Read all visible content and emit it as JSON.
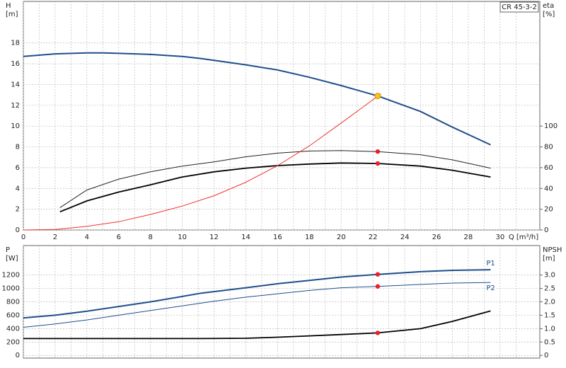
{
  "chart_data": [
    {
      "type": "line",
      "title": "CR 45-3-2",
      "y_label": [
        "H",
        "[m]"
      ],
      "y2_label": [
        "eta",
        "[%]"
      ],
      "x_label": "Q [m³/h]",
      "xlim": [
        0,
        32.5
      ],
      "xticks": [
        0,
        2,
        4,
        6,
        8,
        10,
        12,
        14,
        16,
        18,
        20,
        22,
        24,
        26,
        28,
        30
      ],
      "ylim": [
        0,
        22
      ],
      "yticks": [
        0,
        2,
        4,
        6,
        8,
        10,
        12,
        14,
        16,
        18
      ],
      "y2lim": [
        0,
        220
      ],
      "y2ticks": [
        0,
        20,
        40,
        60,
        80,
        100
      ],
      "grid": true,
      "series": [
        {
          "color": "#1f4e8c",
          "width": 2,
          "x": [
            0,
            2,
            4,
            5,
            6,
            8,
            10,
            11.2,
            14,
            16,
            18,
            20,
            22.3,
            25,
            27,
            29.4
          ],
          "values": [
            16.7,
            16.95,
            17.05,
            17.05,
            17.0,
            16.9,
            16.7,
            16.5,
            15.9,
            15.4,
            14.7,
            13.9,
            12.9,
            11.4,
            9.9,
            8.2
          ]
        },
        {
          "color": "#222222",
          "width": 1,
          "axis": "y2",
          "x": [
            2.3,
            4,
            6,
            8,
            10,
            12,
            14,
            16,
            18,
            20,
            22.3,
            25,
            27,
            29.4
          ],
          "values": [
            21.5,
            38.5,
            49,
            56,
            61.5,
            65.5,
            70.5,
            74,
            76,
            76.5,
            75.5,
            72.5,
            67.5,
            59.5
          ]
        },
        {
          "color": "#000000",
          "width": 1.8,
          "axis": "y2",
          "x": [
            2.3,
            4,
            6,
            8,
            10,
            12,
            14,
            16,
            18,
            20,
            22.3,
            25,
            27,
            29.4
          ],
          "values": [
            17.5,
            28,
            36.5,
            43.5,
            51,
            56,
            59.5,
            62,
            63.5,
            64.5,
            64,
            61.5,
            57.5,
            51
          ]
        },
        {
          "color": "#f0322d",
          "width": 1,
          "x": [
            0,
            2,
            4,
            6,
            8,
            10,
            12,
            14,
            16,
            18,
            20,
            22.5
          ],
          "values": [
            0,
            0.05,
            0.35,
            0.8,
            1.5,
            2.3,
            3.3,
            4.6,
            6.2,
            8.1,
            10.3,
            13.1
          ]
        }
      ],
      "markers": [
        {
          "x": 22.3,
          "value": 12.9,
          "color": "#f5c518"
        },
        {
          "x": 22.3,
          "value": 75.5,
          "axis": "y2",
          "color": "#e8202a"
        },
        {
          "x": 22.3,
          "value": 64,
          "axis": "y2",
          "color": "#e8202a"
        }
      ]
    },
    {
      "type": "line",
      "y_label": [
        "P",
        "[W]"
      ],
      "y2_label": [
        "NPSH",
        "[m]"
      ],
      "xlim": [
        0,
        32.5
      ],
      "xticks": [
        0,
        2,
        4,
        6,
        8,
        10,
        12,
        14,
        16,
        18,
        20,
        22,
        24,
        26,
        28,
        30
      ],
      "ylim": [
        -40,
        1640
      ],
      "yticks": [
        0,
        200,
        400,
        600,
        800,
        1000,
        1200
      ],
      "y2lim": [
        -0.1,
        4.1
      ],
      "y2ticks": [
        0,
        0.5,
        {
          "value": 1,
          "label": "1.0"
        },
        1.5,
        {
          "value": 2,
          "label": "2.0"
        },
        2.5,
        {
          "value": 3,
          "label": "3.0"
        }
      ],
      "grid": true,
      "series": [
        {
          "name": "P1",
          "color": "#1f4e8c",
          "width": 2,
          "x": [
            0,
            2,
            4,
            6,
            8,
            10,
            11.2,
            14,
            16,
            18,
            20,
            22.3,
            25,
            27,
            29.4
          ],
          "values": [
            560,
            600,
            660,
            730,
            800,
            880,
            930,
            1010,
            1070,
            1120,
            1170,
            1210,
            1250,
            1270,
            1280
          ]
        },
        {
          "name": "P2",
          "color": "#1f4e8c",
          "width": 1,
          "x": [
            0,
            2,
            4,
            6,
            8,
            10,
            12,
            14,
            16,
            18,
            20,
            22.3,
            25,
            27,
            29.4
          ],
          "values": [
            420,
            470,
            530,
            600,
            670,
            740,
            810,
            870,
            920,
            970,
            1010,
            1030,
            1060,
            1080,
            1090
          ]
        },
        {
          "color": "#000000",
          "width": 1.8,
          "axis": "y2",
          "x": [
            0,
            4,
            8,
            11.2,
            14,
            16,
            18,
            20,
            22.3,
            25,
            27,
            29.4
          ],
          "values": [
            0.63,
            0.63,
            0.63,
            0.63,
            0.64,
            0.68,
            0.73,
            0.78,
            0.84,
            1.0,
            1.27,
            1.66
          ]
        }
      ],
      "markers": [
        {
          "x": 22.3,
          "value": 1210,
          "color": "#e8202a"
        },
        {
          "x": 22.3,
          "value": 1030,
          "color": "#e8202a"
        },
        {
          "x": 22.3,
          "value": 0.84,
          "axis": "y2",
          "color": "#e8202a"
        }
      ]
    }
  ]
}
